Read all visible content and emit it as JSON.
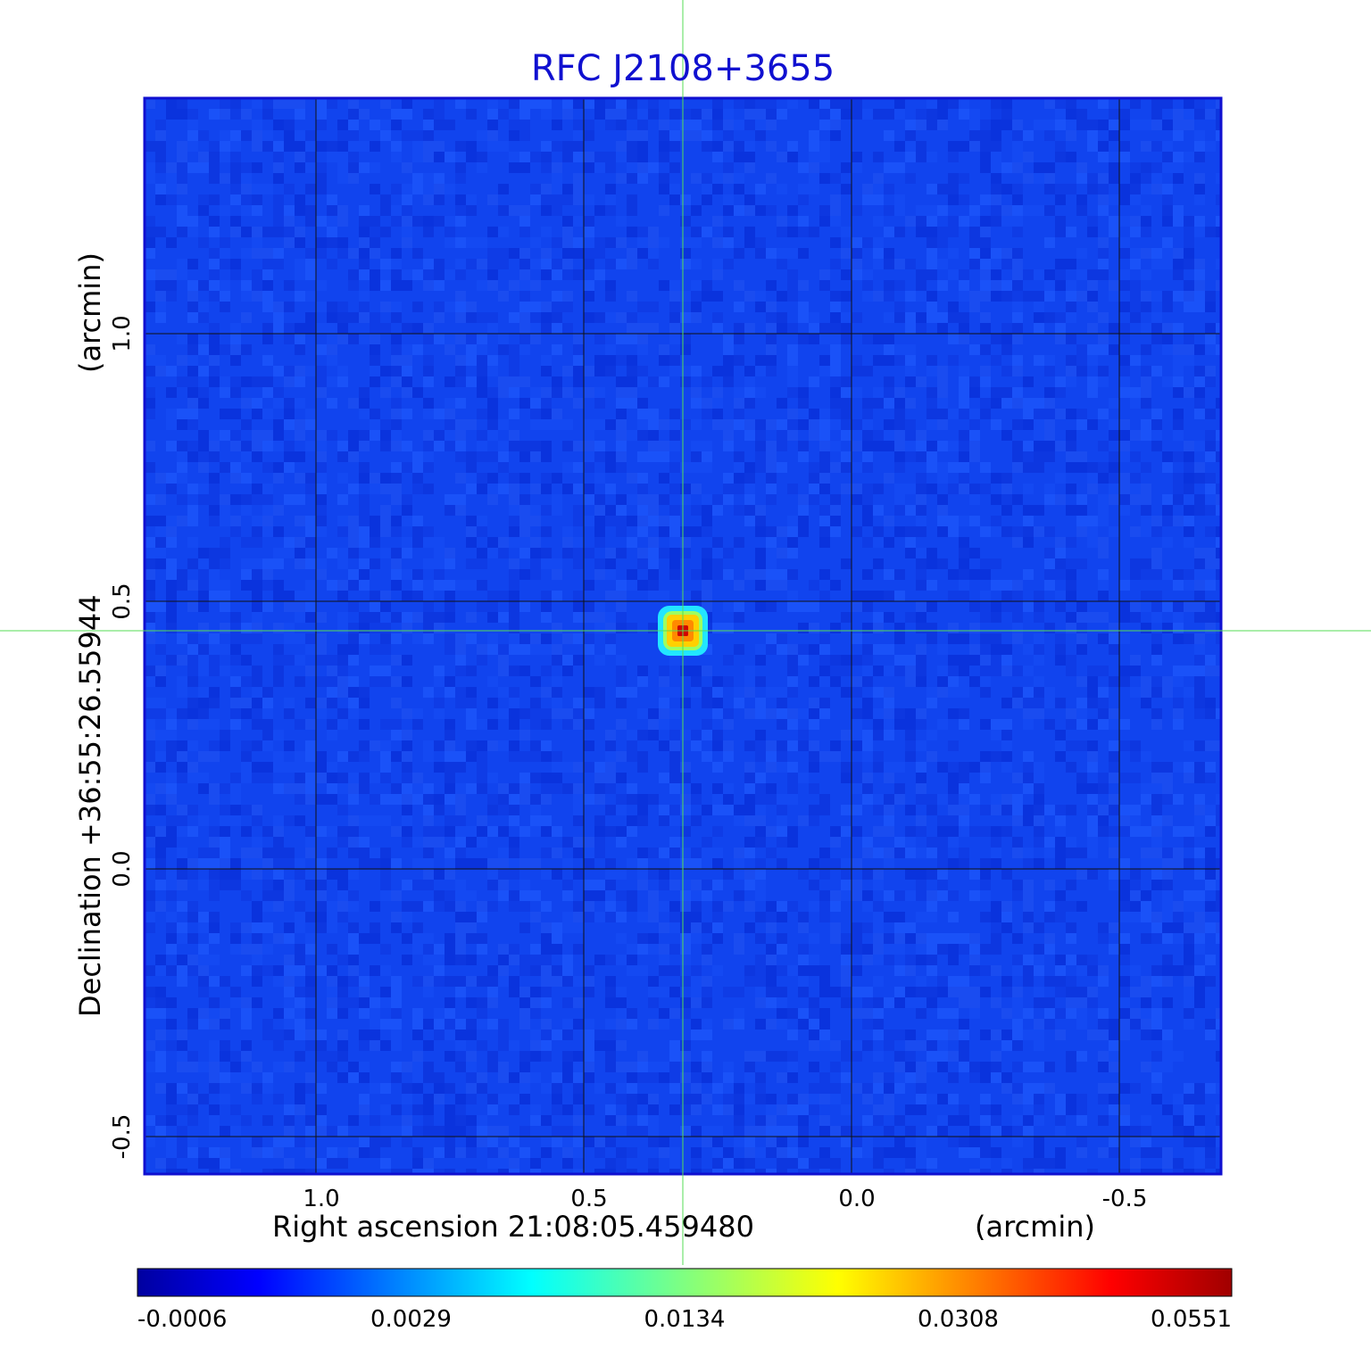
{
  "chart_data": {
    "type": "heatmap",
    "title": "RFC J2108+3655",
    "xlabel": "Right ascension  21:08:05.459480",
    "xunit": "(arcmin)",
    "ylabel": "Declination  +36:55:26.55944",
    "yunit": "(arcmin)",
    "x_ticks": [
      {
        "value": 1.0,
        "label": "1.0"
      },
      {
        "value": 0.5,
        "label": "0.5"
      },
      {
        "value": 0.0,
        "label": "0.0"
      },
      {
        "value": -0.5,
        "label": "-0.5"
      }
    ],
    "y_ticks": [
      {
        "value": 1.0,
        "label": "1.0"
      },
      {
        "value": 0.5,
        "label": "0.5"
      },
      {
        "value": 0.0,
        "label": "0.0"
      },
      {
        "value": -0.5,
        "label": "-0.5"
      }
    ],
    "xlim": [
      1.32,
      -0.69
    ],
    "ylim": [
      -0.57,
      1.44
    ],
    "grid": true,
    "crosshair": {
      "x": 0.315,
      "y": 0.445,
      "color": "#55dd55"
    },
    "source_peak": {
      "x": 0.315,
      "y": 0.445,
      "value": 0.0551
    },
    "background_level": 0.0004,
    "colorbar": {
      "min": -0.0006,
      "max": 0.0551,
      "tick_labels": [
        "-0.0006",
        "0.0029",
        "0.0134",
        "0.0308",
        "0.0551"
      ],
      "colormap": "jet"
    }
  }
}
